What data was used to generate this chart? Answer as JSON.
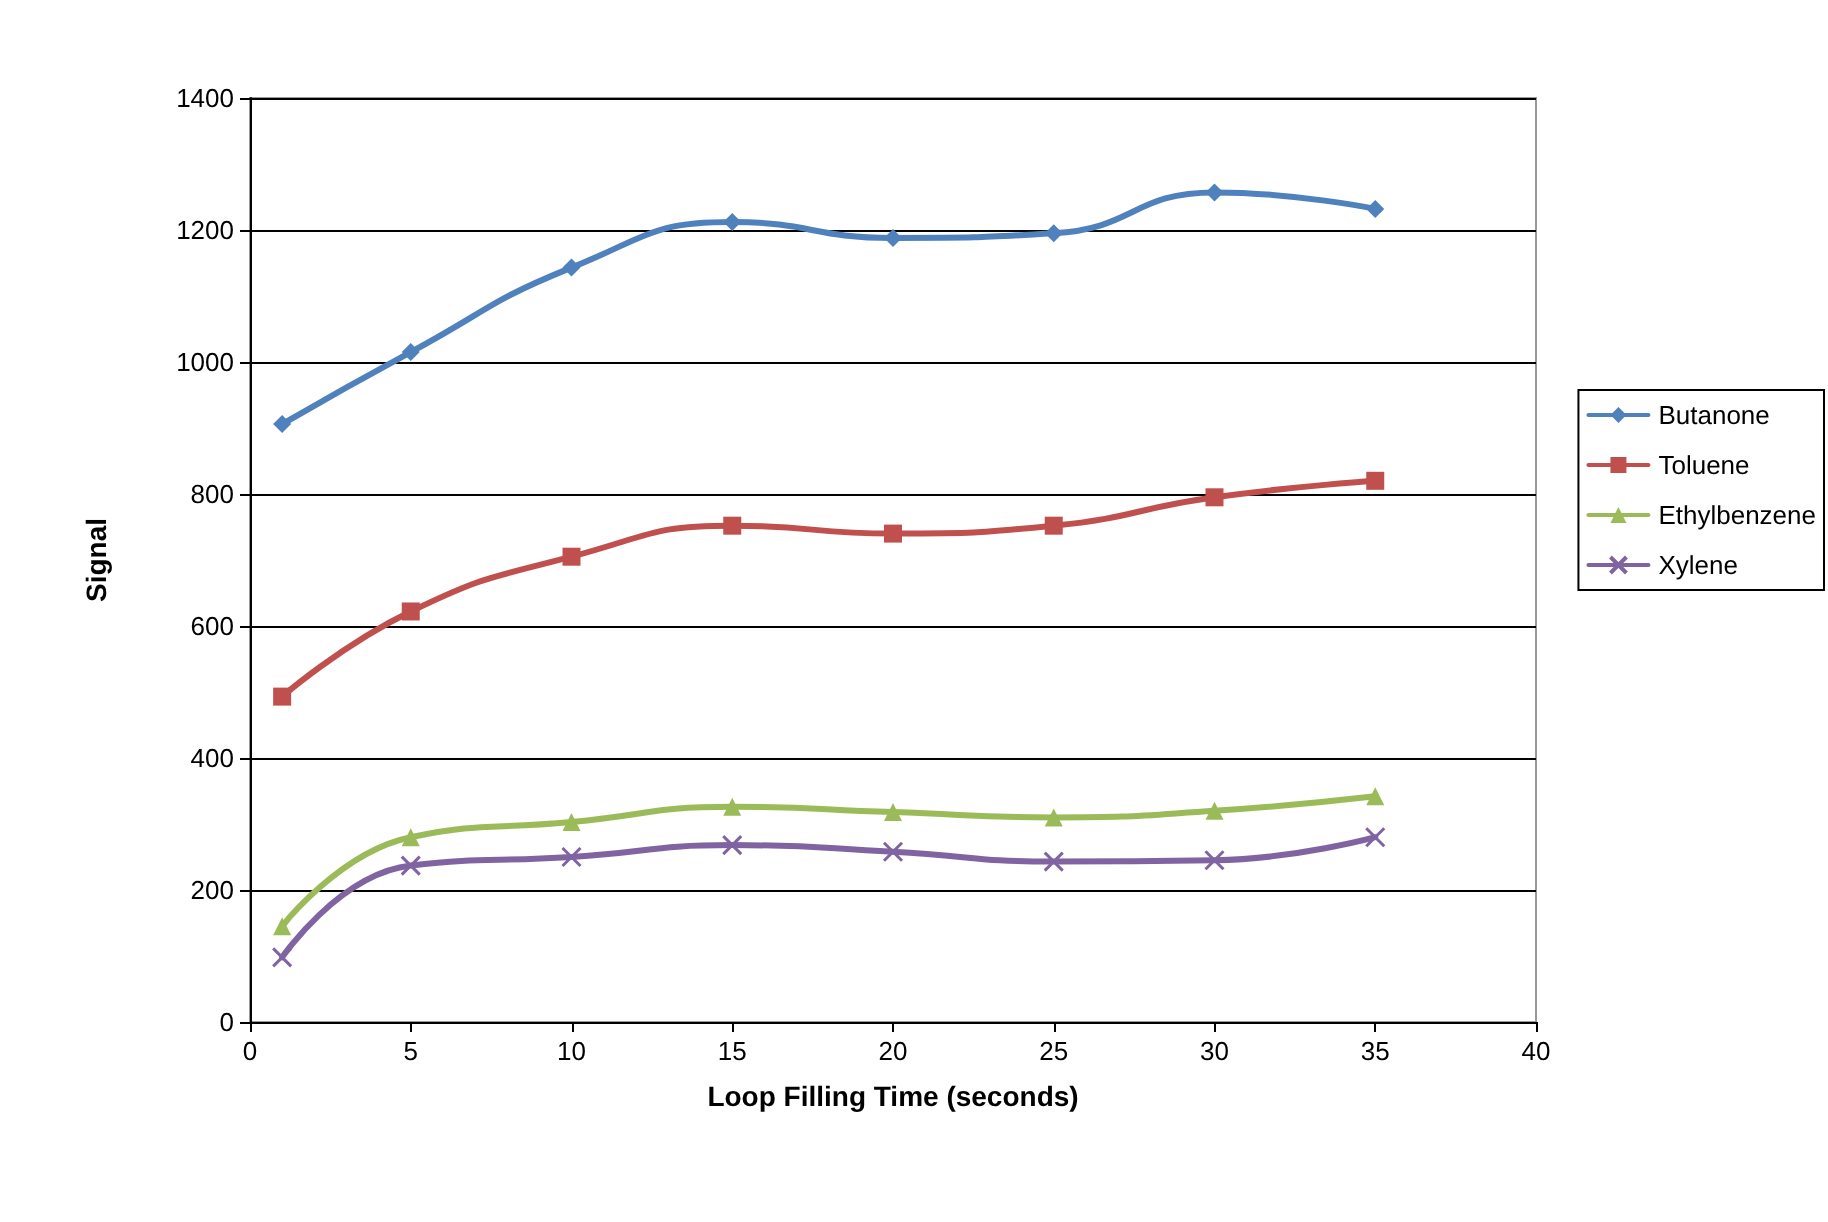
{
  "chart_data": {
    "type": "line",
    "xlabel": "Loop Filling Time (seconds)",
    "ylabel": "Signal",
    "x": [
      1,
      5,
      10,
      15,
      20,
      25,
      30,
      35
    ],
    "series": [
      {
        "name": "Butanone",
        "color": "#4f81bd",
        "marker": "diamond",
        "values": [
          906,
          1015,
          1143,
          1212,
          1188,
          1195,
          1257,
          1232
        ]
      },
      {
        "name": "Toluene",
        "color": "#c0504d",
        "marker": "square",
        "values": [
          493,
          622,
          705,
          752,
          740,
          752,
          795,
          820
        ]
      },
      {
        "name": "Ethylbenzene",
        "color": "#9bbb59",
        "marker": "triangle",
        "values": [
          145,
          280,
          303,
          326,
          318,
          310,
          320,
          342
        ]
      },
      {
        "name": "Xylene",
        "color": "#8064a2",
        "marker": "cross",
        "values": [
          98,
          237,
          250,
          268,
          258,
          243,
          245,
          280
        ]
      }
    ],
    "xlim": [
      0,
      40
    ],
    "xticks": [
      0,
      5,
      10,
      15,
      20,
      25,
      30,
      35,
      40
    ],
    "ylim": [
      0,
      1400
    ],
    "yticks": [
      0,
      200,
      400,
      600,
      800,
      1000,
      1200,
      1400
    ],
    "grid": "y",
    "legend": "right"
  }
}
